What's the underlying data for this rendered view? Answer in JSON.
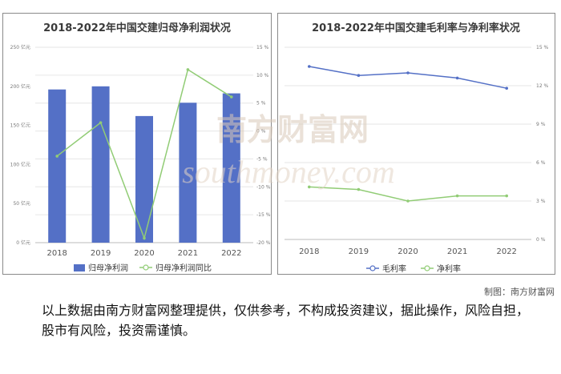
{
  "watermark": {
    "cn": "南方财富网",
    "en": "southmoney.com"
  },
  "credit": "制图：南方财富网",
  "disclaimer": "以上数据由南方财富网整理提供，仅供参考，不构成投资建议，据此操作，风险自担，股市有风险，投资需谨慎。",
  "colors": {
    "bar": "#5470c6",
    "line_green": "#91cc75",
    "line_blue": "#5470c6"
  },
  "chart_data": [
    {
      "type": "bar",
      "title": "2018-2022年中国交建归母净利润状况",
      "categories": [
        "2018",
        "2019",
        "2020",
        "2021",
        "2022"
      ],
      "y_ticks_left": [
        "0 亿元",
        "50 亿元",
        "100 亿元",
        "150 亿元",
        "200 亿元",
        "250 亿元"
      ],
      "y_ticks_right": [
        "-20 %",
        "-15 %",
        "-10 %",
        "-5 %",
        "0 %",
        "5 %",
        "10 %",
        "15 %"
      ],
      "ylim_left": [
        0,
        250
      ],
      "ylim_right": [
        -20,
        15
      ],
      "series": [
        {
          "name": "归母净利润",
          "kind": "bar",
          "axis": "left",
          "values": [
            196,
            200,
            162,
            179,
            191
          ]
        },
        {
          "name": "归母净利润同比",
          "kind": "line",
          "axis": "right",
          "values": [
            -4.5,
            1.5,
            -19.2,
            11,
            6.1
          ]
        }
      ],
      "legend": "bottom"
    },
    {
      "type": "line",
      "title": "2018-2022年中国交建毛利率与净利率状况",
      "categories": [
        "2018",
        "2019",
        "2020",
        "2021",
        "2022"
      ],
      "y_ticks_right": [
        "0 %",
        "3 %",
        "6 %",
        "9 %",
        "12 %",
        "15 %"
      ],
      "ylim": [
        0,
        15
      ],
      "series": [
        {
          "name": "毛利率",
          "values": [
            13.5,
            12.8,
            13.0,
            12.6,
            11.8
          ]
        },
        {
          "name": "净利率",
          "values": [
            4.1,
            3.9,
            3.0,
            3.4,
            3.4
          ]
        }
      ],
      "legend": "bottom"
    }
  ]
}
